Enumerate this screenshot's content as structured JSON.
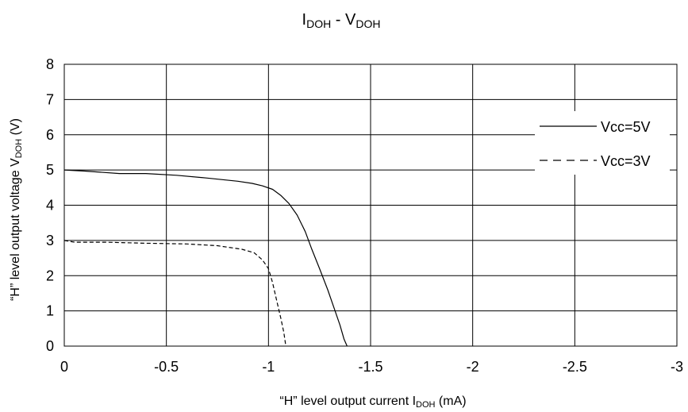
{
  "chart_data": {
    "type": "line",
    "title": {
      "main": "I",
      "sub1": "DOH",
      "mid": " - V",
      "sub2": "DOH"
    },
    "xlabel": {
      "prefix": "“H” level output current I",
      "sub": "DOH",
      "suffix": " (mA)"
    },
    "ylabel": {
      "prefix": "“H” level output voltage V",
      "sub": "DOH",
      "suffix": " (V)"
    },
    "xlim": [
      0,
      -3
    ],
    "ylim": [
      0,
      8
    ],
    "x_ticks": [
      0,
      -0.5,
      -1,
      -1.5,
      -2,
      -2.5,
      -3
    ],
    "x_tick_labels": [
      "0",
      "-0.5",
      "-1",
      "-1.5",
      "-2",
      "-2.5",
      "-3"
    ],
    "y_ticks": [
      0,
      1,
      2,
      3,
      4,
      5,
      6,
      7,
      8
    ],
    "y_tick_labels": [
      "0",
      "1",
      "2",
      "3",
      "4",
      "5",
      "6",
      "7",
      "8"
    ],
    "grid": true,
    "legend_position": "top-right",
    "series": [
      {
        "name": "Vcc=5V",
        "style": "solid",
        "color": "#000000",
        "points": [
          [
            0,
            5.0
          ],
          [
            -0.1,
            4.97
          ],
          [
            -0.27,
            4.9
          ],
          [
            -0.4,
            4.9
          ],
          [
            -0.55,
            4.85
          ],
          [
            -0.7,
            4.77
          ],
          [
            -0.85,
            4.68
          ],
          [
            -0.92,
            4.62
          ],
          [
            -0.97,
            4.55
          ],
          [
            -1.02,
            4.45
          ],
          [
            -1.06,
            4.28
          ],
          [
            -1.1,
            4.05
          ],
          [
            -1.14,
            3.72
          ],
          [
            -1.18,
            3.25
          ],
          [
            -1.21,
            2.78
          ],
          [
            -1.25,
            2.2
          ],
          [
            -1.29,
            1.6
          ],
          [
            -1.32,
            1.1
          ],
          [
            -1.35,
            0.6
          ],
          [
            -1.37,
            0.2
          ],
          [
            -1.385,
            0.0
          ]
        ]
      },
      {
        "name": "Vcc=3V",
        "style": "dashed",
        "color": "#000000",
        "points": [
          [
            0,
            3.0
          ],
          [
            -0.05,
            2.95
          ],
          [
            -0.2,
            2.95
          ],
          [
            -0.4,
            2.92
          ],
          [
            -0.6,
            2.9
          ],
          [
            -0.75,
            2.85
          ],
          [
            -0.87,
            2.75
          ],
          [
            -0.93,
            2.65
          ],
          [
            -0.97,
            2.45
          ],
          [
            -1.0,
            2.2
          ],
          [
            -1.02,
            1.8
          ],
          [
            -1.04,
            1.3
          ],
          [
            -1.06,
            0.8
          ],
          [
            -1.075,
            0.4
          ],
          [
            -1.085,
            0.0
          ]
        ]
      }
    ]
  }
}
